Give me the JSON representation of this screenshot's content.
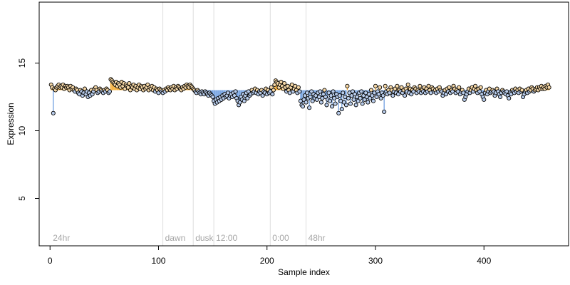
{
  "chart_data": {
    "type": "scatter",
    "xlabel": "Sample index",
    "ylabel": "Expression",
    "xlim": [
      -10,
      478
    ],
    "ylim": [
      1.5,
      19.5
    ],
    "xticks": [
      0,
      100,
      200,
      300,
      400
    ],
    "yticks": [
      5,
      10,
      15
    ],
    "xtick_labels": [
      "0",
      "100",
      "200",
      "300",
      "400"
    ],
    "ytick_labels": [
      "5",
      "10",
      "15"
    ],
    "baseline": 13.0,
    "colors": {
      "above": "#F5A623",
      "below": "#6F9FE0",
      "point_edge": "#000000",
      "point_fill_high": "#F5D7A6",
      "point_fill_low": "#B8CCEB",
      "divider": "#DDDDDD",
      "phase_text": "#A6A6A6"
    },
    "phase_markers": [
      {
        "label": "24hr",
        "x": 0
      },
      {
        "label": "dawn",
        "x": 104
      },
      {
        "label": "dusk",
        "x": 132
      },
      {
        "label": "12:00",
        "x": 151
      },
      {
        "label": "0:00",
        "x": 203
      },
      {
        "label": "48hr",
        "x": 236
      }
    ],
    "dividers": [
      104,
      132,
      151,
      203,
      236
    ],
    "x_start": 1,
    "y": [
      13.4,
      13.2,
      11.3,
      13.1,
      13.0,
      13.2,
      13.3,
      13.4,
      13.2,
      13.3,
      13.2,
      13.4,
      13.1,
      13.3,
      13.2,
      13.3,
      13.2,
      13.0,
      13.3,
      13.1,
      13.2,
      13.0,
      12.9,
      13.1,
      13.0,
      12.8,
      12.7,
      13.0,
      12.9,
      12.6,
      12.8,
      13.1,
      12.7,
      12.9,
      12.5,
      12.8,
      12.6,
      13.0,
      12.7,
      12.9,
      13.1,
      13.2,
      13.0,
      12.8,
      12.9,
      13.1,
      13.0,
      12.9,
      12.8,
      13.0,
      12.9,
      13.1,
      13.0,
      12.8,
      12.9,
      13.8,
      13.7,
      13.6,
      13.5,
      13.4,
      13.6,
      13.3,
      13.5,
      13.4,
      13.2,
      13.6,
      13.3,
      13.5,
      13.1,
      13.4,
      13.3,
      13.2,
      13.5,
      13.0,
      13.3,
      13.2,
      13.4,
      13.1,
      13.3,
      13.0,
      13.2,
      13.4,
      13.1,
      13.3,
      13.2,
      13.0,
      13.3,
      13.1,
      13.2,
      13.4,
      13.0,
      13.2,
      13.1,
      13.3,
      13.0,
      13.2,
      12.9,
      13.1,
      13.0,
      12.8,
      13.1,
      13.0,
      12.9,
      12.8,
      13.0,
      12.9,
      13.1,
      13.0,
      13.2,
      13.1,
      13.0,
      13.2,
      13.1,
      13.3,
      13.0,
      13.2,
      13.1,
      13.3,
      13.2,
      13.1,
      13.0,
      13.2,
      13.1,
      13.3,
      13.2,
      13.4,
      13.3,
      13.2,
      13.4,
      13.3,
      13.2,
      13.1,
      13.0,
      12.9,
      12.8,
      13.0,
      12.9,
      12.8,
      12.7,
      12.9,
      12.8,
      12.7,
      12.9,
      12.8,
      12.7,
      12.6,
      12.8,
      12.7,
      12.6,
      12.5,
      12.2,
      12.0,
      12.3,
      12.1,
      12.4,
      12.2,
      12.5,
      12.3,
      12.6,
      12.4,
      12.7,
      12.5,
      12.6,
      12.8,
      12.4,
      12.6,
      12.7,
      12.5,
      12.8,
      12.6,
      12.9,
      12.4,
      12.2,
      11.9,
      12.1,
      12.5,
      12.3,
      12.7,
      12.2,
      12.6,
      12.8,
      12.4,
      12.9,
      12.6,
      12.7,
      13.0,
      12.8,
      12.9,
      13.1,
      12.8,
      13.0,
      12.7,
      12.9,
      12.8,
      13.0,
      12.6,
      12.9,
      12.8,
      13.1,
      12.7,
      13.0,
      12.8,
      12.9,
      13.2,
      12.7,
      13.0,
      13.4,
      13.7,
      13.6,
      13.5,
      13.2,
      13.4,
      13.6,
      13.3,
      13.1,
      13.5,
      13.2,
      12.9,
      13.3,
      13.0,
      12.8,
      13.2,
      13.4,
      12.9,
      13.1,
      13.3,
      13.0,
      12.8,
      13.2,
      12.9,
      12.2,
      11.9,
      11.8,
      12.3,
      12.6,
      12.1,
      12.8,
      12.4,
      11.7,
      12.5,
      12.9,
      12.2,
      12.7,
      12.4,
      12.6,
      12.3,
      12.8,
      12.5,
      12.9,
      12.1,
      12.4,
      12.7,
      13.0,
      12.5,
      11.9,
      12.3,
      12.8,
      12.2,
      12.6,
      11.8,
      12.9,
      12.4,
      12.0,
      12.7,
      12.5,
      11.3,
      12.6,
      12.2,
      11.6,
      12.8,
      12.1,
      12.5,
      11.9,
      13.3,
      12.4,
      12.8,
      12.0,
      12.6,
      12.9,
      12.3,
      12.7,
      11.9,
      12.5,
      12.2,
      12.8,
      12.4,
      12.9,
      12.0,
      12.6,
      12.3,
      12.8,
      12.5,
      12.1,
      12.7,
      12.4,
      13.0,
      12.6,
      12.2,
      12.8,
      13.3,
      12.5,
      12.9,
      12.7,
      13.2,
      12.4,
      12.8,
      12.6,
      11.4,
      13.3,
      12.9,
      12.7,
      13.0,
      12.8,
      13.2,
      13.0,
      12.6,
      12.9,
      13.1,
      12.8,
      13.3,
      12.7,
      13.0,
      12.9,
      13.2,
      12.8,
      13.0,
      12.6,
      13.1,
      12.9,
      13.4,
      12.8,
      13.1,
      12.7,
      13.0,
      12.9,
      13.2,
      13.1,
      12.8,
      13.0,
      12.9,
      13.3,
      12.8,
      13.0,
      12.9,
      13.2,
      12.8,
      13.1,
      12.9,
      13.3,
      13.0,
      12.8,
      13.2,
      13.1,
      12.9,
      13.0,
      12.8,
      13.1,
      12.9,
      13.2,
      13.0,
      12.9,
      12.6,
      12.8,
      13.0,
      12.7,
      13.1,
      12.9,
      13.2,
      12.8,
      13.0,
      12.9,
      13.3,
      13.1,
      12.8,
      13.0,
      12.9,
      13.2,
      12.7,
      12.9,
      13.0,
      12.8,
      12.3,
      12.5,
      12.7,
      12.9,
      13.1,
      12.8,
      13.0,
      13.2,
      12.9,
      13.1,
      13.3,
      13.0,
      12.8,
      13.1,
      12.9,
      13.2,
      12.7,
      12.5,
      12.3,
      12.8,
      13.0,
      12.7,
      12.9,
      13.1,
      12.8,
      12.9,
      13.0,
      12.9,
      12.6,
      12.8,
      13.1,
      12.9,
      12.7,
      12.5,
      12.8,
      13.0,
      12.9,
      12.8,
      12.7,
      12.9,
      12.6,
      12.4,
      12.8,
      12.7,
      13.0,
      12.9,
      12.8,
      13.1,
      12.9,
      13.0,
      12.8,
      13.1,
      12.9,
      13.0,
      12.5,
      12.7,
      12.9,
      13.0,
      12.8,
      13.1,
      12.9,
      13.0,
      13.2,
      13.1,
      12.9,
      13.0,
      13.1,
      13.2,
      13.0,
      13.2,
      13.1,
      13.3,
      13.1,
      13.2,
      13.1,
      13.3,
      13.2,
      13.4,
      13.2
    ]
  }
}
